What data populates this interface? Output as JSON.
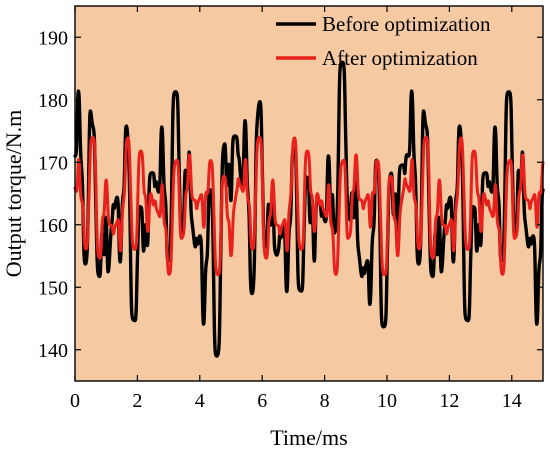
{
  "colors": {
    "plot_background": "#f5c9a2",
    "before": "#000000",
    "after": "#e8211d"
  },
  "chart_data": {
    "type": "line",
    "title": "",
    "xlabel": "Time/ms",
    "ylabel": "Output torque/N.m",
    "xlim": [
      0,
      15
    ],
    "ylim": [
      135,
      195
    ],
    "xticks": [
      0,
      2,
      4,
      6,
      8,
      10,
      12,
      14
    ],
    "yticks": [
      140,
      150,
      160,
      170,
      180,
      190
    ],
    "legend_position": "top-right",
    "grid": false,
    "series": [
      {
        "name": "Before optimization",
        "color": "#000000",
        "min": 139,
        "max": 186,
        "shape": {
          "period_ms": 2.67,
          "harmonics": [
            [
              1.0,
              0.8,
              8.0,
              1.0
            ],
            [
              1.5,
              0.5,
              4.5,
              2.3
            ],
            [
              2.25,
              0.4,
              4.0,
              0.4
            ],
            [
              3.0,
              0.3,
              3.0,
              3.5
            ],
            [
              5.0,
              1.0,
              3.0,
              1.3
            ],
            [
              7.0,
              1.0,
              2.5,
              5.1
            ]
          ],
          "steps": 1500
        }
      },
      {
        "name": "After optimization",
        "color": "#e8211d",
        "min": 152,
        "max": 174,
        "shape": {
          "period_ms": 2.67,
          "harmonics": [
            [
              1.5,
              0.5,
              4.0,
              0.7
            ],
            [
              3.0,
              0.3,
              2.5,
              2.9
            ],
            [
              5.0,
              1.0,
              3.0,
              1.3
            ],
            [
              7.0,
              1.0,
              2.0,
              4.8
            ]
          ],
          "steps": 1500
        }
      }
    ]
  }
}
